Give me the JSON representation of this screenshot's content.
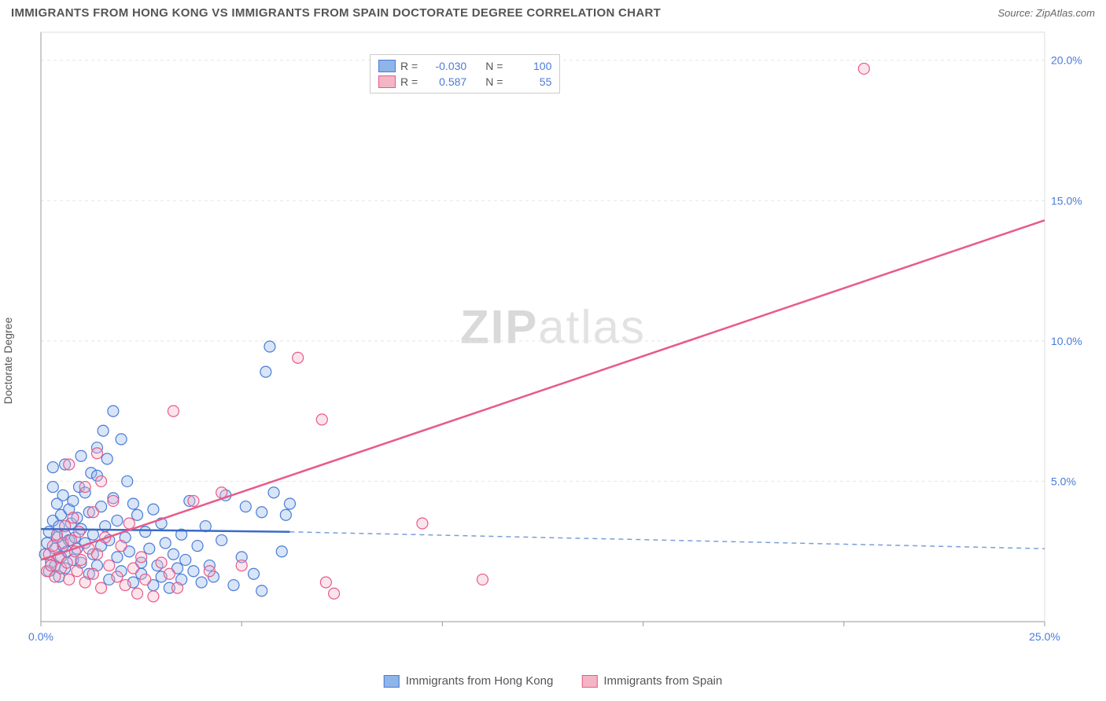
{
  "header": {
    "title": "IMMIGRANTS FROM HONG KONG VS IMMIGRANTS FROM SPAIN DOCTORATE DEGREE CORRELATION CHART",
    "source": "Source: ZipAtlas.com"
  },
  "watermark": {
    "zip": "ZIP",
    "atlas": "atlas"
  },
  "chart": {
    "type": "scatter",
    "ylabel": "Doctorate Degree",
    "background_color": "#ffffff",
    "grid_color": "#e5e5e5",
    "axis_color": "#999999",
    "tick_label_color": "#4a7bd8",
    "xlim": [
      0,
      25
    ],
    "ylim": [
      0,
      21
    ],
    "xticks": [
      0,
      5,
      10,
      15,
      20,
      25
    ],
    "yticks": [
      5,
      10,
      15,
      20
    ],
    "xtick_labels": [
      "0.0%",
      "",
      "",
      "",
      "",
      "25.0%"
    ],
    "ytick_labels": [
      "5.0%",
      "10.0%",
      "15.0%",
      "20.0%"
    ],
    "marker_radius": 7,
    "series": [
      {
        "name": "Immigrants from Hong Kong",
        "color_fill": "#8fb4e8",
        "color_stroke": "#4a7bd8",
        "R": "-0.030",
        "N": "100",
        "trend": {
          "x1": 0,
          "y1": 3.3,
          "x2": 6.2,
          "y2": 3.2,
          "x2_dash": 25,
          "y2_dash": 2.6,
          "color": "#3a6bc7",
          "dash_color": "#7a9ed8"
        },
        "points": [
          [
            0.1,
            2.4
          ],
          [
            0.15,
            2.8
          ],
          [
            0.2,
            3.2
          ],
          [
            0.2,
            1.8
          ],
          [
            0.25,
            2.1
          ],
          [
            0.3,
            3.6
          ],
          [
            0.3,
            4.8
          ],
          [
            0.35,
            2.0
          ],
          [
            0.35,
            2.6
          ],
          [
            0.4,
            3.0
          ],
          [
            0.4,
            4.2
          ],
          [
            0.45,
            1.6
          ],
          [
            0.45,
            3.4
          ],
          [
            0.5,
            2.3
          ],
          [
            0.5,
            3.8
          ],
          [
            0.55,
            2.7
          ],
          [
            0.55,
            4.5
          ],
          [
            0.6,
            1.9
          ],
          [
            0.6,
            3.1
          ],
          [
            0.65,
            2.5
          ],
          [
            0.7,
            4.0
          ],
          [
            0.7,
            2.9
          ],
          [
            0.75,
            3.5
          ],
          [
            0.8,
            2.2
          ],
          [
            0.8,
            4.3
          ],
          [
            0.85,
            3.0
          ],
          [
            0.9,
            2.6
          ],
          [
            0.9,
            3.7
          ],
          [
            0.95,
            4.8
          ],
          [
            1.0,
            2.1
          ],
          [
            1.0,
            3.3
          ],
          [
            1.1,
            4.6
          ],
          [
            1.1,
            2.8
          ],
          [
            1.2,
            1.7
          ],
          [
            1.2,
            3.9
          ],
          [
            1.25,
            5.3
          ],
          [
            1.3,
            2.4
          ],
          [
            1.3,
            3.1
          ],
          [
            1.4,
            6.2
          ],
          [
            1.4,
            2.0
          ],
          [
            1.5,
            4.1
          ],
          [
            1.5,
            2.7
          ],
          [
            1.55,
            6.8
          ],
          [
            1.6,
            3.4
          ],
          [
            1.65,
            5.8
          ],
          [
            1.7,
            1.5
          ],
          [
            1.7,
            2.9
          ],
          [
            1.8,
            4.4
          ],
          [
            1.8,
            7.5
          ],
          [
            1.9,
            2.3
          ],
          [
            1.9,
            3.6
          ],
          [
            2.0,
            6.5
          ],
          [
            2.0,
            1.8
          ],
          [
            2.1,
            3.0
          ],
          [
            2.15,
            5.0
          ],
          [
            2.2,
            2.5
          ],
          [
            2.3,
            4.2
          ],
          [
            2.3,
            1.4
          ],
          [
            2.4,
            3.8
          ],
          [
            2.5,
            2.1
          ],
          [
            2.5,
            1.7
          ],
          [
            2.6,
            3.2
          ],
          [
            2.7,
            2.6
          ],
          [
            2.8,
            1.3
          ],
          [
            2.8,
            4.0
          ],
          [
            2.9,
            2.0
          ],
          [
            3.0,
            3.5
          ],
          [
            3.0,
            1.6
          ],
          [
            3.1,
            2.8
          ],
          [
            3.2,
            1.2
          ],
          [
            3.3,
            2.4
          ],
          [
            3.4,
            1.9
          ],
          [
            3.5,
            3.1
          ],
          [
            3.5,
            1.5
          ],
          [
            3.6,
            2.2
          ],
          [
            3.7,
            4.3
          ],
          [
            3.8,
            1.8
          ],
          [
            3.9,
            2.7
          ],
          [
            4.0,
            1.4
          ],
          [
            4.1,
            3.4
          ],
          [
            4.2,
            2.0
          ],
          [
            4.3,
            1.6
          ],
          [
            4.5,
            2.9
          ],
          [
            4.6,
            4.5
          ],
          [
            4.8,
            1.3
          ],
          [
            5.0,
            2.3
          ],
          [
            5.1,
            4.1
          ],
          [
            5.3,
            1.7
          ],
          [
            5.5,
            3.9
          ],
          [
            5.6,
            8.9
          ],
          [
            5.7,
            9.8
          ],
          [
            5.8,
            4.6
          ],
          [
            6.0,
            2.5
          ],
          [
            6.1,
            3.8
          ],
          [
            6.2,
            4.2
          ],
          [
            5.5,
            1.1
          ],
          [
            0.3,
            5.5
          ],
          [
            1.0,
            5.9
          ],
          [
            1.4,
            5.2
          ],
          [
            0.6,
            5.6
          ]
        ]
      },
      {
        "name": "Immigrants from Spain",
        "color_fill": "#f4b5c5",
        "color_stroke": "#e85a8a",
        "R": "0.587",
        "N": "55",
        "trend": {
          "x1": 0,
          "y1": 2.2,
          "x2": 25,
          "y2": 14.3,
          "color": "#e85a8a"
        },
        "points": [
          [
            0.15,
            1.8
          ],
          [
            0.2,
            2.4
          ],
          [
            0.25,
            2.0
          ],
          [
            0.3,
            2.7
          ],
          [
            0.35,
            1.6
          ],
          [
            0.4,
            3.1
          ],
          [
            0.45,
            2.3
          ],
          [
            0.5,
            1.9
          ],
          [
            0.55,
            2.8
          ],
          [
            0.6,
            3.4
          ],
          [
            0.65,
            2.1
          ],
          [
            0.7,
            1.5
          ],
          [
            0.75,
            2.9
          ],
          [
            0.8,
            3.7
          ],
          [
            0.85,
            2.5
          ],
          [
            0.9,
            1.8
          ],
          [
            0.95,
            3.2
          ],
          [
            1.0,
            2.2
          ],
          [
            1.1,
            4.8
          ],
          [
            1.1,
            1.4
          ],
          [
            1.2,
            2.6
          ],
          [
            1.3,
            3.9
          ],
          [
            1.3,
            1.7
          ],
          [
            1.4,
            2.4
          ],
          [
            1.5,
            5.0
          ],
          [
            1.5,
            1.2
          ],
          [
            1.6,
            3.0
          ],
          [
            1.7,
            2.0
          ],
          [
            1.8,
            4.3
          ],
          [
            1.9,
            1.6
          ],
          [
            2.0,
            2.7
          ],
          [
            2.1,
            1.3
          ],
          [
            2.2,
            3.5
          ],
          [
            2.3,
            1.9
          ],
          [
            2.4,
            1.0
          ],
          [
            2.5,
            2.3
          ],
          [
            2.6,
            1.5
          ],
          [
            2.8,
            0.9
          ],
          [
            3.0,
            2.1
          ],
          [
            3.2,
            1.7
          ],
          [
            3.3,
            7.5
          ],
          [
            3.4,
            1.2
          ],
          [
            3.8,
            4.3
          ],
          [
            4.2,
            1.8
          ],
          [
            4.5,
            4.6
          ],
          [
            5.0,
            2.0
          ],
          [
            6.4,
            9.4
          ],
          [
            7.0,
            7.2
          ],
          [
            7.1,
            1.4
          ],
          [
            7.3,
            1.0
          ],
          [
            9.5,
            3.5
          ],
          [
            11.0,
            1.5
          ],
          [
            20.5,
            19.7
          ],
          [
            0.7,
            5.6
          ],
          [
            1.4,
            6.0
          ]
        ]
      }
    ]
  },
  "legend_stats": {
    "r_label": "R =",
    "n_label": "N ="
  },
  "legend_bottom": {
    "items": [
      "Immigrants from Hong Kong",
      "Immigrants from Spain"
    ]
  }
}
